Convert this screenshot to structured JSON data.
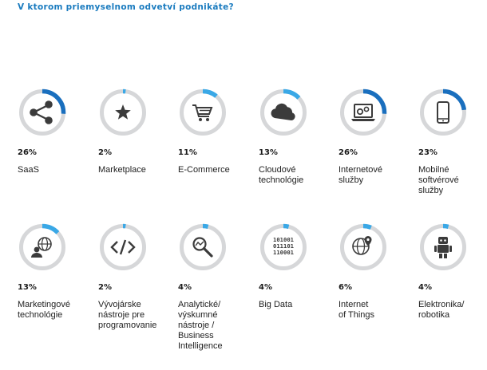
{
  "title": "V ktorom priemyselnom odvetví podnikáte?",
  "colors": {
    "ring": "#d6d7d9",
    "arc_major": "#1a6fbe",
    "arc_minor": "#3aa8e6",
    "icon": "#3b3b3b"
  },
  "chart_data": {
    "type": "gauge",
    "title": "V ktorom priemyselnom odvetví podnikáte?",
    "unit": "%",
    "items": [
      {
        "value": 26,
        "value_label": "26%",
        "label_lines": [
          "SaaS"
        ],
        "icon": "share-icon"
      },
      {
        "value": 2,
        "value_label": "2%",
        "label_lines": [
          "Marketplace"
        ],
        "icon": "star-icon"
      },
      {
        "value": 11,
        "value_label": "11%",
        "label_lines": [
          "E-Commerce"
        ],
        "icon": "shopping-cart-icon"
      },
      {
        "value": 13,
        "value_label": "13%",
        "label_lines": [
          "Cloudové",
          "technológie"
        ],
        "icon": "cloud-icon"
      },
      {
        "value": 26,
        "value_label": "26%",
        "label_lines": [
          "Internetové",
          "služby"
        ],
        "icon": "laptop-gears-icon"
      },
      {
        "value": 23,
        "value_label": "23%",
        "label_lines": [
          "Mobilné",
          "softvérové",
          "služby"
        ],
        "icon": "smartphone-icon"
      },
      {
        "value": 13,
        "value_label": "13%",
        "label_lines": [
          "Marketingové",
          "technológie"
        ],
        "icon": "globe-person-icon"
      },
      {
        "value": 2,
        "value_label": "2%",
        "label_lines": [
          "Vývojárske",
          "nástroje pre",
          "programovanie"
        ],
        "icon": "code-icon"
      },
      {
        "value": 4,
        "value_label": "4%",
        "label_lines": [
          "Analytické/",
          "výskumné",
          "nástroje /",
          "Business",
          "Intelligence"
        ],
        "icon": "magnifier-chart-icon"
      },
      {
        "value": 4,
        "value_label": "4%",
        "label_lines": [
          "Big Data"
        ],
        "icon": "binary-data-icon"
      },
      {
        "value": 6,
        "value_label": "6%",
        "label_lines": [
          "Internet",
          "of Things"
        ],
        "icon": "globe-pin-icon"
      },
      {
        "value": 4,
        "value_label": "4%",
        "label_lines": [
          "Elektronika/",
          "robotika"
        ],
        "icon": "robot-icon"
      }
    ],
    "binary_text": [
      "101001",
      "011101",
      "110001"
    ]
  }
}
